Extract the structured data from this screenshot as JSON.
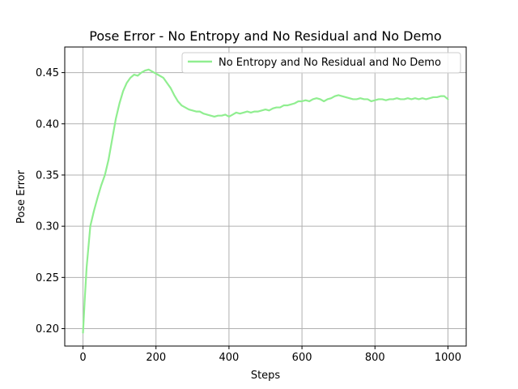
{
  "chart_data": {
    "type": "line",
    "title": "Pose Error - No Entropy and No Residual and No Demo",
    "xlabel": "Steps",
    "ylabel": "Pose Error",
    "xlim": [
      -50,
      1050
    ],
    "ylim": [
      0.183,
      0.475
    ],
    "xticks": [
      0,
      200,
      400,
      600,
      800,
      1000
    ],
    "yticks": [
      0.2,
      0.25,
      0.3,
      0.35,
      0.4,
      0.45
    ],
    "xtick_labels": [
      "0",
      "200",
      "400",
      "600",
      "800",
      "1000"
    ],
    "ytick_labels": [
      "0.20",
      "0.25",
      "0.30",
      "0.35",
      "0.40",
      "0.45"
    ],
    "grid": true,
    "legend_position": "top-right",
    "series": [
      {
        "name": "No Entropy and No Residual and No Demo",
        "color": "#90ee90",
        "x": [
          0,
          5,
          10,
          15,
          20,
          30,
          40,
          50,
          60,
          70,
          80,
          90,
          100,
          110,
          120,
          130,
          140,
          150,
          160,
          170,
          180,
          190,
          200,
          210,
          220,
          230,
          240,
          250,
          260,
          270,
          280,
          290,
          300,
          310,
          320,
          330,
          340,
          350,
          360,
          370,
          380,
          390,
          400,
          410,
          420,
          430,
          440,
          450,
          460,
          470,
          480,
          490,
          500,
          510,
          520,
          530,
          540,
          550,
          560,
          570,
          580,
          590,
          600,
          610,
          620,
          630,
          640,
          650,
          660,
          670,
          680,
          690,
          700,
          710,
          720,
          730,
          740,
          750,
          760,
          770,
          780,
          790,
          800,
          810,
          820,
          830,
          840,
          850,
          860,
          870,
          880,
          890,
          900,
          910,
          920,
          930,
          940,
          950,
          960,
          970,
          980,
          990,
          1000
        ],
        "values": [
          0.196,
          0.23,
          0.26,
          0.28,
          0.3,
          0.315,
          0.328,
          0.34,
          0.35,
          0.365,
          0.385,
          0.405,
          0.42,
          0.432,
          0.44,
          0.445,
          0.448,
          0.447,
          0.45,
          0.452,
          0.453,
          0.451,
          0.449,
          0.447,
          0.445,
          0.44,
          0.435,
          0.428,
          0.422,
          0.418,
          0.416,
          0.414,
          0.413,
          0.412,
          0.412,
          0.41,
          0.409,
          0.408,
          0.407,
          0.408,
          0.408,
          0.409,
          0.407,
          0.409,
          0.411,
          0.41,
          0.411,
          0.412,
          0.411,
          0.412,
          0.412,
          0.413,
          0.414,
          0.413,
          0.415,
          0.416,
          0.416,
          0.418,
          0.418,
          0.419,
          0.42,
          0.422,
          0.422,
          0.423,
          0.422,
          0.424,
          0.425,
          0.424,
          0.422,
          0.424,
          0.425,
          0.427,
          0.428,
          0.427,
          0.426,
          0.425,
          0.424,
          0.424,
          0.425,
          0.424,
          0.424,
          0.422,
          0.423,
          0.424,
          0.424,
          0.423,
          0.424,
          0.424,
          0.425,
          0.424,
          0.424,
          0.425,
          0.424,
          0.425,
          0.424,
          0.425,
          0.424,
          0.425,
          0.426,
          0.426,
          0.427,
          0.427,
          0.424
        ]
      }
    ]
  }
}
